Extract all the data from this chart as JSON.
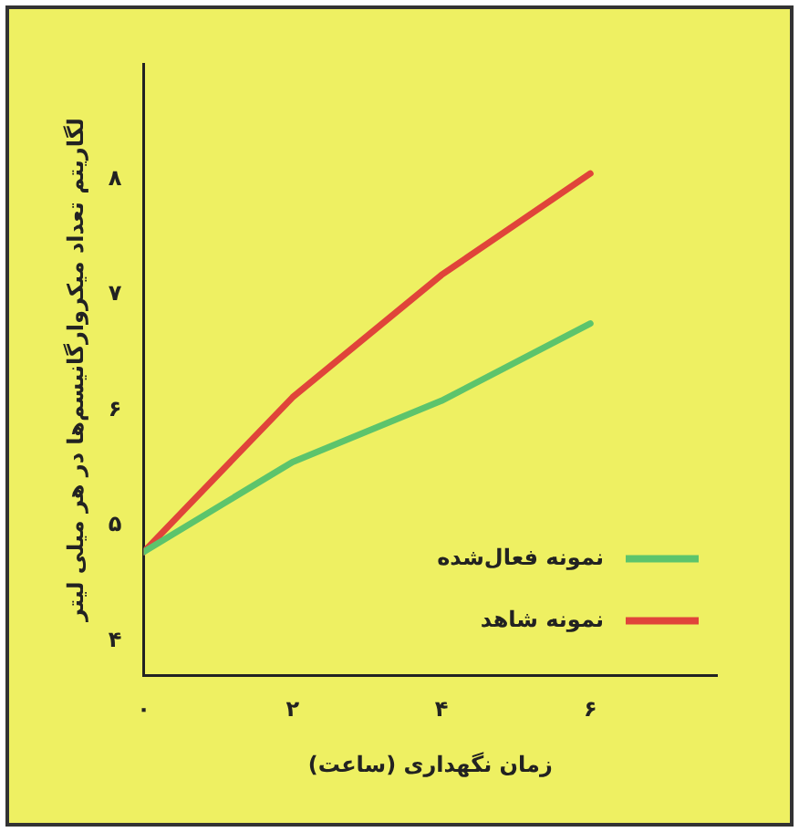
{
  "chart_data": {
    "type": "line",
    "xlabel": "زمان نگهداری (ساعت)",
    "ylabel": "لگاریتم تعداد میکروارگانیسم‌ها در هر میلی لیتر",
    "x": [
      0,
      2,
      4,
      6
    ],
    "series": [
      {
        "name": "نمونه فعال‌شده",
        "color": "#5cc46c",
        "values": [
          4.77,
          5.55,
          6.08,
          6.75
        ]
      },
      {
        "name": "نمونه شاهد",
        "color": "#e0443a",
        "values": [
          4.77,
          6.11,
          7.17,
          8.05
        ]
      }
    ],
    "xlim": [
      0,
      7.7
    ],
    "xticks": [
      {
        "value": 0,
        "label": "۰"
      },
      {
        "value": 2,
        "label": "۲"
      },
      {
        "value": 4,
        "label": "۴"
      },
      {
        "value": 6,
        "label": "۶"
      }
    ],
    "ylim": [
      3.7,
      9
    ],
    "yticks": [
      {
        "value": 4,
        "label": "۴"
      },
      {
        "value": 5,
        "label": "۵"
      },
      {
        "value": 6,
        "label": "۶"
      },
      {
        "value": 7,
        "label": "۷"
      },
      {
        "value": 8,
        "label": "۸"
      }
    ],
    "grid": false,
    "legend": "bottom right",
    "marker": "none",
    "line_style": "solid"
  }
}
